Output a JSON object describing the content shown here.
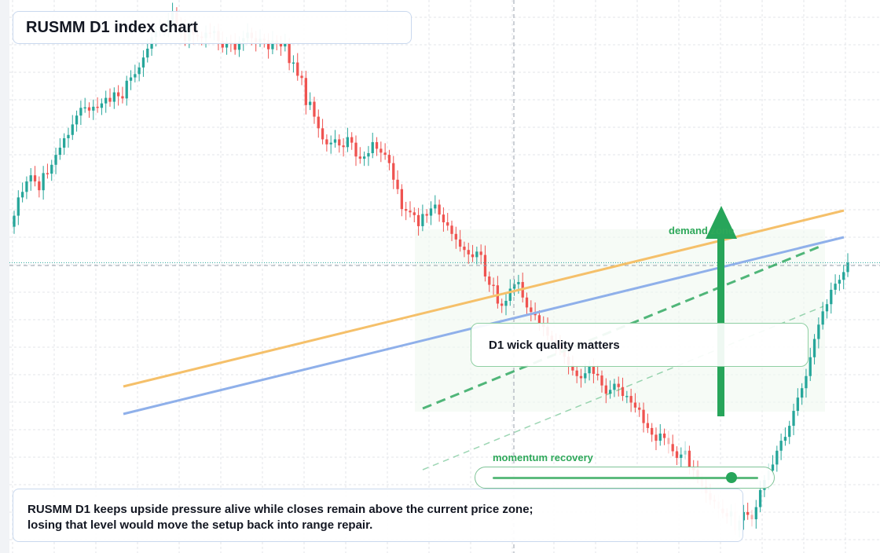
{
  "header": {
    "title": "RUSMM D1 index chart"
  },
  "annotations": {
    "demand_zone_label": "demand zone",
    "momentum_label": "momentum recovery",
    "note": "D1 wick quality matters",
    "summary_line1": "RUSMM D1 keeps upside pressure alive while closes remain above the current price zone;",
    "summary_line2": "losing that level would move the setup back into range repair."
  },
  "indicators": {
    "momentum_level": 0.9
  },
  "colors": {
    "up": "#26a69a",
    "down": "#ef5350",
    "accent_green": "#27a55a",
    "orange_line": "#f5c06a",
    "blue_line": "#8fb0ea",
    "zone_fill": "#eef8ef"
  },
  "chart_data": {
    "type": "candlestick",
    "title": "RUSMM D1 index chart",
    "ylim": [
      60,
      160
    ],
    "current_price": 112.5,
    "grid": true,
    "closes": [
      121.0,
      124.3,
      125.3,
      127.2,
      128.3,
      127.2,
      125.6,
      128.7,
      128.6,
      130.2,
      132.0,
      133.3,
      135.0,
      135.6,
      137.5,
      139.1,
      140.5,
      140.6,
      140.0,
      140.7,
      140.5,
      141.3,
      142.3,
      141.6,
      143.3,
      142.6,
      142.2,
      145.4,
      146.0,
      146.6,
      147.8,
      149.6,
      151.2,
      153.3,
      154.3,
      154.8,
      155.0,
      156.4,
      157.8,
      155.6,
      154.8,
      152.6,
      155.1,
      153.7,
      153.4,
      153.1,
      154.1,
      154.0,
      154.4,
      152.6,
      151.4,
      152.4,
      152.3,
      151.0,
      152.5,
      153.1,
      154.1,
      153.1,
      152.4,
      153.0,
      152.7,
      151.1,
      152.7,
      152.2,
      151.6,
      152.2,
      148.6,
      148.7,
      146.3,
      145.9,
      141.0,
      141.6,
      138.9,
      136.8,
      134.8,
      133.9,
      134.2,
      134.8,
      133.7,
      133.4,
      135.2,
      134.2,
      131.7,
      131.3,
      131.7,
      132.3,
      134.3,
      133.1,
      132.4,
      132.0,
      130.5,
      127.5,
      125.8,
      122.2,
      121.9,
      121.6,
      121.1,
      119.1,
      121.3,
      121.0,
      122.3,
      123.0,
      121.2,
      119.8,
      119.2,
      117.7,
      116.7,
      115.4,
      114.8,
      114.0,
      113.5,
      114.5,
      113.9,
      110.0,
      108.5,
      108.4,
      105.1,
      104.7,
      105.6,
      107.8,
      108.6,
      109.0,
      106.2,
      104.4,
      103.6,
      103.0,
      101.5,
      100.9,
      99.3,
      98.4,
      97.7,
      96.7,
      95.5,
      94.0,
      93.0,
      92.0,
      91.6,
      92.5,
      93.9,
      92.4,
      92.1,
      90.3,
      88.8,
      89.5,
      90.6,
      90.0,
      88.4,
      88.4,
      87.2,
      86.3,
      85.9,
      83.5,
      82.6,
      81.4,
      80.3,
      81.6,
      80.8,
      79.7,
      78.4,
      77.2,
      77.8,
      78.5,
      75.5,
      75.0,
      73.5,
      72.0,
      70.8,
      69.6,
      69.3,
      68.0,
      67.2,
      66.6,
      67.5,
      64.1,
      65.9,
      67.4,
      66.9,
      66.1,
      68.3,
      71.4,
      73.2,
      74.9,
      76.0,
      78.5,
      80.3,
      81.0,
      83.0,
      85.7,
      88.1,
      89.8,
      92.0,
      95.4,
      98.7,
      101.3,
      103.7,
      105.0,
      107.6,
      108.7,
      109.4,
      110.8,
      112.5
    ]
  }
}
